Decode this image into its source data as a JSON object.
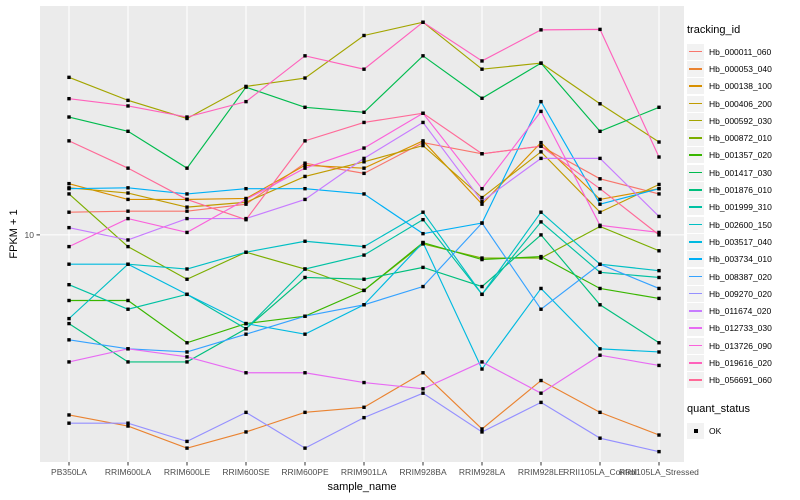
{
  "figure": {
    "ylabel": "FPKM + 1",
    "xlabel": "sample_name",
    "legend_title": "tracking_id",
    "legend2_title": "quant_status",
    "legend2_entry": "OK"
  },
  "chart_data": {
    "type": "line",
    "title": "",
    "xlabel": "sample_name",
    "ylabel": "FPKM + 1",
    "yscale": "log10",
    "ylim": [
      1.61,
      63
    ],
    "yticks": [
      10
    ],
    "ytick_labels": [
      "10"
    ],
    "grid": "white on gray panel, vertical line per category, horizontal line at 10",
    "panel_bg": "#EBEBEB",
    "grid_color": "#FFFFFF",
    "tick_text_color": "#4D4D4D",
    "point_color": "#000000",
    "legend_position": "right",
    "legend_key_bg": "#F2F2F2",
    "categories": [
      "PB350LA",
      "RRIM600LA",
      "RRIM600LE",
      "RRIM600SE",
      "RRIM600PE",
      "RRIM901LA",
      "RRIM928BA",
      "RRIM928LA",
      "RRIM928LE",
      "RRII105LA_Control",
      "RRII105LA_Stressed"
    ],
    "series": [
      {
        "name": "Hb_000011_060",
        "color": "#F8766D",
        "values": [
          12.0,
          12.1,
          12.1,
          12.8,
          17.8,
          16.4,
          21.0,
          19.2,
          20.4,
          15.7,
          13.9
        ]
      },
      {
        "name": "Hb_000053_040",
        "color": "#EA8331",
        "values": [
          2.35,
          2.15,
          1.8,
          2.05,
          2.4,
          2.5,
          3.3,
          2.1,
          3.1,
          2.4,
          2.0
        ]
      },
      {
        "name": "Hb_000138_100",
        "color": "#D89000",
        "values": [
          15.1,
          13.3,
          13.3,
          13.4,
          17.5,
          17.1,
          21.3,
          12.8,
          21.0,
          13.3,
          14.5
        ]
      },
      {
        "name": "Hb_000406_200",
        "color": "#C09B00",
        "values": [
          14.6,
          14.0,
          12.5,
          13.0,
          16.0,
          18.0,
          20.5,
          13.5,
          19.5,
          12.0,
          15.0
        ]
      },
      {
        "name": "Hb_000592_030",
        "color": "#A3A500",
        "values": [
          35.5,
          29.5,
          25.5,
          33.0,
          35.3,
          49.7,
          55.3,
          37.9,
          39.8,
          28.7,
          21.1
        ]
      },
      {
        "name": "Hb_000872_010",
        "color": "#7CAE00",
        "values": [
          13.9,
          9.1,
          7.0,
          8.7,
          7.6,
          6.4,
          9.3,
          8.3,
          8.3,
          10.7,
          8.8
        ]
      },
      {
        "name": "Hb_001357_020",
        "color": "#39B600",
        "values": [
          5.9,
          5.9,
          4.2,
          4.9,
          5.2,
          6.4,
          9.4,
          8.2,
          8.4,
          6.5,
          6.0
        ]
      },
      {
        "name": "Hb_001417_030",
        "color": "#00BB4E",
        "values": [
          25.8,
          23.0,
          17.1,
          32.8,
          27.9,
          26.8,
          42.2,
          30.0,
          39.8,
          23.0,
          27.9
        ]
      },
      {
        "name": "Hb_001876_010",
        "color": "#00BF7D",
        "values": [
          4.9,
          3.6,
          3.6,
          4.7,
          7.1,
          7.0,
          7.7,
          6.6,
          10.0,
          5.7,
          4.2
        ]
      },
      {
        "name": "Hb_001999_310",
        "color": "#00C1A3",
        "values": [
          6.7,
          5.5,
          6.2,
          4.7,
          7.6,
          8.5,
          11.3,
          6.2,
          11.1,
          7.4,
          7.1
        ]
      },
      {
        "name": "Hb_002600_150",
        "color": "#00BFC4",
        "values": [
          5.1,
          7.9,
          7.6,
          8.7,
          9.5,
          9.1,
          12.0,
          6.2,
          12.0,
          7.9,
          7.5
        ]
      },
      {
        "name": "Hb_003517_040",
        "color": "#00BAE0",
        "values": [
          7.9,
          7.9,
          6.2,
          4.9,
          4.5,
          5.7,
          9.4,
          3.4,
          6.5,
          4.0,
          3.9
        ]
      },
      {
        "name": "Hb_003734_010",
        "color": "#00B0F6",
        "values": [
          14.5,
          14.6,
          13.9,
          14.5,
          14.5,
          13.9,
          10.1,
          11.0,
          29.2,
          12.8,
          14.5
        ]
      },
      {
        "name": "Hb_008387_020",
        "color": "#35A2FF",
        "values": [
          4.3,
          4.0,
          3.9,
          4.5,
          5.2,
          5.7,
          6.6,
          11.0,
          5.5,
          7.9,
          6.5
        ]
      },
      {
        "name": "Hb_009270_020",
        "color": "#9590FF",
        "values": [
          2.2,
          2.2,
          1.9,
          2.4,
          1.8,
          2.3,
          2.8,
          2.05,
          2.6,
          1.95,
          1.75
        ]
      },
      {
        "name": "Hb_011674_020",
        "color": "#C77CFF",
        "values": [
          10.6,
          9.6,
          11.4,
          11.4,
          13.3,
          18.5,
          24.7,
          13.1,
          18.5,
          18.5,
          11.6
        ]
      },
      {
        "name": "Hb_012733_030",
        "color": "#E76BF3",
        "values": [
          3.6,
          4.0,
          3.75,
          3.3,
          3.3,
          3.05,
          2.9,
          3.6,
          2.8,
          3.8,
          3.5
        ]
      },
      {
        "name": "Hb_013726_090",
        "color": "#FA62DB",
        "values": [
          9.1,
          11.4,
          10.2,
          13.3,
          17.1,
          20.1,
          26.6,
          14.5,
          27.0,
          10.8,
          10.2
        ]
      },
      {
        "name": "Hb_019616_020",
        "color": "#FF62BC",
        "values": [
          29.9,
          28.2,
          25.8,
          29.2,
          42.2,
          37.9,
          55.3,
          40.5,
          52.0,
          52.2,
          18.7
        ]
      },
      {
        "name": "Hb_056691_060",
        "color": "#FF6A98",
        "values": [
          21.3,
          17.1,
          13.3,
          11.3,
          21.3,
          24.7,
          26.6,
          19.2,
          20.4,
          14.5,
          10.0
        ]
      }
    ],
    "quant_status": {
      "title": "quant_status",
      "entries": [
        "OK"
      ]
    }
  }
}
